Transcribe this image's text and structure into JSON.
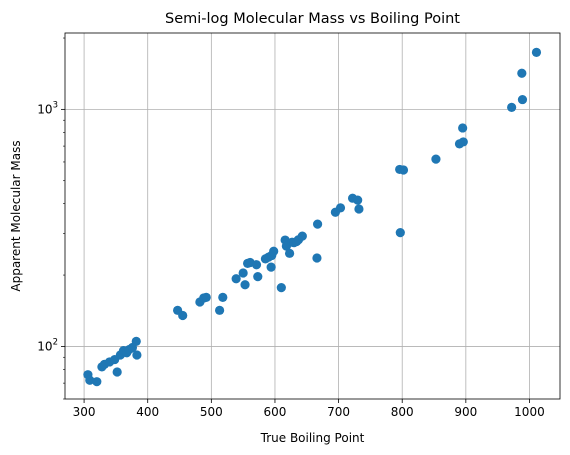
{
  "chart_data": {
    "type": "scatter",
    "title": "Semi-log Molecular Mass vs Boiling Point",
    "xlabel": "True Boiling Point",
    "ylabel": "Apparent Molecular Mass",
    "xlim": [
      270,
      1048
    ],
    "ylim": [
      60,
      2100
    ],
    "yscale": "log",
    "grid": true,
    "marker_color": "#1f77b4",
    "x_ticks": [
      300,
      400,
      500,
      600,
      700,
      800,
      900,
      1000
    ],
    "y_ticks": [
      {
        "value": 100,
        "base": "10",
        "exp": "2"
      },
      {
        "value": 1000,
        "base": "10",
        "exp": "3"
      }
    ],
    "points": [
      {
        "x": 306,
        "y": 76
      },
      {
        "x": 309,
        "y": 72
      },
      {
        "x": 320,
        "y": 71
      },
      {
        "x": 328,
        "y": 82
      },
      {
        "x": 332,
        "y": 84
      },
      {
        "x": 340,
        "y": 86
      },
      {
        "x": 348,
        "y": 88
      },
      {
        "x": 352,
        "y": 78
      },
      {
        "x": 357,
        "y": 92
      },
      {
        "x": 362,
        "y": 96
      },
      {
        "x": 367,
        "y": 94
      },
      {
        "x": 371,
        "y": 97
      },
      {
        "x": 376,
        "y": 99
      },
      {
        "x": 382,
        "y": 105
      },
      {
        "x": 383,
        "y": 92
      },
      {
        "x": 447,
        "y": 142
      },
      {
        "x": 455,
        "y": 135
      },
      {
        "x": 482,
        "y": 154
      },
      {
        "x": 488,
        "y": 160
      },
      {
        "x": 492,
        "y": 161
      },
      {
        "x": 513,
        "y": 142
      },
      {
        "x": 518,
        "y": 161
      },
      {
        "x": 539,
        "y": 193
      },
      {
        "x": 550,
        "y": 204
      },
      {
        "x": 553,
        "y": 182
      },
      {
        "x": 557,
        "y": 224
      },
      {
        "x": 561,
        "y": 226
      },
      {
        "x": 571,
        "y": 221
      },
      {
        "x": 573,
        "y": 197
      },
      {
        "x": 585,
        "y": 234
      },
      {
        "x": 590,
        "y": 238
      },
      {
        "x": 594,
        "y": 216
      },
      {
        "x": 595,
        "y": 242
      },
      {
        "x": 598,
        "y": 252
      },
      {
        "x": 610,
        "y": 177
      },
      {
        "x": 616,
        "y": 281
      },
      {
        "x": 618,
        "y": 265
      },
      {
        "x": 623,
        "y": 247
      },
      {
        "x": 627,
        "y": 275
      },
      {
        "x": 630,
        "y": 274
      },
      {
        "x": 634,
        "y": 277
      },
      {
        "x": 637,
        "y": 282
      },
      {
        "x": 643,
        "y": 292
      },
      {
        "x": 666,
        "y": 236
      },
      {
        "x": 667,
        "y": 328
      },
      {
        "x": 695,
        "y": 368
      },
      {
        "x": 703,
        "y": 384
      },
      {
        "x": 722,
        "y": 422
      },
      {
        "x": 730,
        "y": 414
      },
      {
        "x": 732,
        "y": 380
      },
      {
        "x": 796,
        "y": 558
      },
      {
        "x": 797,
        "y": 302
      },
      {
        "x": 802,
        "y": 555
      },
      {
        "x": 853,
        "y": 617
      },
      {
        "x": 890,
        "y": 715
      },
      {
        "x": 895,
        "y": 835
      },
      {
        "x": 896,
        "y": 729
      },
      {
        "x": 972,
        "y": 1020
      },
      {
        "x": 988,
        "y": 1420
      },
      {
        "x": 989,
        "y": 1100
      },
      {
        "x": 1011,
        "y": 1740
      }
    ]
  }
}
